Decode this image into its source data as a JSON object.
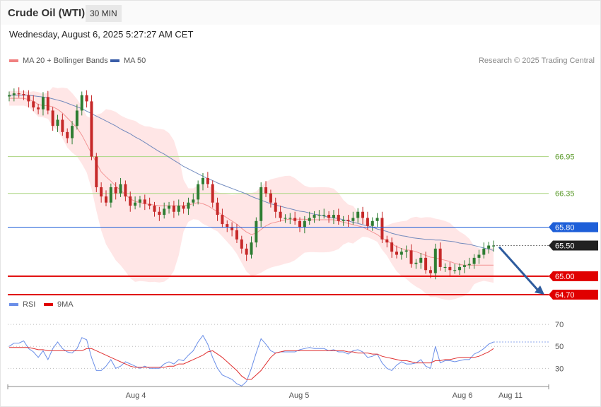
{
  "header": {
    "title": "Crude Oil (WTI)",
    "timeframe": "30 MIN",
    "datetime": "Wednesday, August 6, 2025 5:27:27 AM CET"
  },
  "legend": {
    "ma20": "MA 20 + Bollinger Bands",
    "ma50": "MA 50",
    "rsi": "RSI",
    "rsi_ma": "9MA"
  },
  "credit": "Research © 2025 Trading Central",
  "colors": {
    "bull": "#2e7d32",
    "bear": "#c62828",
    "band": "#ffdede",
    "ma20": "#f08080",
    "ma50": "#5a79b5",
    "blue_level": "#1e5fd8",
    "red_level": "#e00000",
    "green_level": "#b5d98f",
    "rsi": "#6a8ee8",
    "rsi_ma": "#e03030"
  },
  "chart_data": [
    {
      "type": "candlestick",
      "x_labels": [
        "Aug 4",
        "Aug 5",
        "Aug 6",
        "Aug 11"
      ],
      "ylim": [
        64.55,
        68.35
      ],
      "levels": [
        {
          "value": 66.95,
          "label": "66.95",
          "kind": "resistance"
        },
        {
          "value": 66.35,
          "label": "66.35",
          "kind": "resistance"
        },
        {
          "value": 65.8,
          "label": "65.80",
          "kind": "pivot"
        },
        {
          "value": 65.5,
          "label": "65.50",
          "kind": "last"
        },
        {
          "value": 65.0,
          "label": "65.00",
          "kind": "support"
        },
        {
          "value": 64.7,
          "label": "64.70",
          "kind": "support"
        }
      ],
      "closes": [
        67.95,
        67.98,
        67.97,
        67.95,
        67.85,
        67.75,
        67.72,
        67.92,
        67.7,
        67.45,
        67.55,
        67.35,
        67.25,
        67.45,
        67.7,
        67.95,
        67.85,
        66.95,
        66.45,
        66.3,
        66.2,
        66.45,
        66.35,
        66.5,
        66.3,
        66.15,
        66.2,
        66.25,
        66.18,
        66.15,
        66.05,
        66.0,
        66.1,
        66.15,
        66.05,
        66.15,
        66.1,
        66.2,
        66.25,
        66.5,
        66.6,
        66.5,
        66.2,
        66.0,
        65.85,
        65.8,
        65.75,
        65.6,
        65.45,
        65.35,
        65.55,
        65.9,
        66.45,
        66.35,
        66.2,
        66.05,
        65.95,
        65.95,
        65.95,
        65.9,
        65.8,
        65.9,
        65.95,
        66.0,
        66.0,
        66.0,
        65.95,
        66.0,
        65.9,
        65.92,
        65.9,
        65.95,
        66.05,
        65.95,
        65.82,
        65.9,
        65.95,
        65.6,
        65.55,
        65.4,
        65.35,
        65.4,
        65.42,
        65.2,
        65.22,
        65.3,
        65.1,
        65.05,
        65.45,
        65.15,
        65.15,
        65.1,
        65.1,
        65.15,
        65.18,
        65.2,
        65.3,
        65.35,
        65.45,
        65.5,
        65.5
      ],
      "sma20": [
        67.9,
        67.9,
        67.9,
        67.9,
        67.88,
        67.85,
        67.8,
        67.78,
        67.78,
        67.76,
        67.72,
        67.66,
        67.58,
        67.5,
        67.42,
        67.3,
        67.15,
        67.0,
        66.85,
        66.7,
        66.62,
        66.55,
        66.47,
        66.4,
        66.33,
        66.26,
        66.22,
        66.2,
        66.18,
        66.17,
        66.16,
        66.15,
        66.15,
        66.15,
        66.15,
        66.15,
        66.15,
        66.16,
        66.18,
        66.2,
        66.18,
        66.15,
        66.1,
        66.05,
        66.0,
        65.95,
        65.9,
        65.85,
        65.78,
        65.72,
        65.68,
        65.7,
        65.76,
        65.82,
        65.86,
        65.88,
        65.9,
        65.92,
        65.93,
        65.93,
        65.93,
        65.93,
        65.92,
        65.92,
        65.92,
        65.92,
        65.92,
        65.92,
        65.9,
        65.88,
        65.86,
        65.84,
        65.82,
        65.8,
        65.76,
        65.72,
        65.68,
        65.62,
        65.58,
        65.53,
        65.48,
        65.45,
        65.43,
        65.42,
        65.4,
        65.37,
        65.34,
        65.31,
        65.3,
        65.28,
        65.26,
        65.24,
        65.21,
        65.19,
        65.18,
        65.18,
        65.18,
        65.18,
        65.18,
        65.18,
        65.18
      ],
      "sma50": [
        67.95,
        67.95,
        67.95,
        67.95,
        67.95,
        67.94,
        67.93,
        67.92,
        67.91,
        67.89,
        67.87,
        67.85,
        67.82,
        67.79,
        67.76,
        67.73,
        67.69,
        67.65,
        67.61,
        67.57,
        67.53,
        67.49,
        67.45,
        67.4,
        67.36,
        67.32,
        67.27,
        67.23,
        67.18,
        67.13,
        67.08,
        67.03,
        66.99,
        66.94,
        66.89,
        66.84,
        66.79,
        66.75,
        66.71,
        66.67,
        66.63,
        66.59,
        66.56,
        66.52,
        66.49,
        66.46,
        66.43,
        66.4,
        66.37,
        66.34,
        66.3,
        66.27,
        66.24,
        66.21,
        66.18,
        66.16,
        66.14,
        66.12,
        66.1,
        66.08,
        66.06,
        66.05,
        66.03,
        66.01,
        66.0,
        65.98,
        65.96,
        65.95,
        65.94,
        65.92,
        65.9,
        65.88,
        65.86,
        65.84,
        65.82,
        65.8,
        65.77,
        65.75,
        65.73,
        65.7,
        65.68,
        65.66,
        65.65,
        65.63,
        65.62,
        65.61,
        65.6,
        65.6,
        65.59,
        65.59,
        65.58,
        65.57,
        65.56,
        65.54,
        65.53,
        65.52,
        65.5,
        65.48,
        65.46,
        65.44,
        65.42
      ]
    },
    {
      "type": "line",
      "name": "RSI",
      "yticks": [
        70,
        50,
        30
      ],
      "ylim": [
        18,
        72
      ],
      "series": [
        {
          "name": "RSI",
          "values": [
            50,
            53,
            53,
            55,
            48,
            45,
            40,
            46,
            38,
            48,
            54,
            48,
            45,
            44,
            48,
            58,
            56,
            40,
            28,
            28,
            32,
            38,
            30,
            32,
            36,
            34,
            32,
            30,
            32,
            30,
            30,
            30,
            34,
            36,
            34,
            38,
            37,
            42,
            46,
            54,
            60,
            52,
            40,
            30,
            24,
            22,
            20,
            16,
            14,
            18,
            30,
            44,
            57,
            52,
            46,
            44,
            45,
            45,
            45,
            45,
            47,
            48,
            49,
            48,
            48,
            48,
            46,
            47,
            45,
            45,
            43,
            46,
            47,
            45,
            40,
            41,
            43,
            35,
            30,
            28,
            33,
            36,
            34,
            34,
            35,
            38,
            32,
            30,
            50,
            35,
            37,
            37,
            36,
            37,
            38,
            38,
            43,
            45,
            48,
            52,
            54
          ]
        },
        {
          "name": "9MA",
          "values": [
            49,
            49,
            49,
            49,
            49,
            48,
            47,
            47,
            46,
            46,
            46,
            46,
            46,
            46,
            46,
            46,
            48,
            48,
            46,
            44,
            42,
            40,
            38,
            36,
            34,
            32,
            31,
            31,
            31,
            31,
            31,
            31,
            31,
            32,
            32,
            34,
            34,
            36,
            38,
            40,
            42,
            45,
            46,
            43,
            40,
            36,
            32,
            28,
            23,
            20,
            20,
            24,
            28,
            34,
            40,
            44,
            45,
            46,
            46,
            46,
            46,
            46,
            46,
            46,
            46,
            46,
            46,
            46,
            46,
            46,
            45,
            45,
            44,
            44,
            44,
            43,
            43,
            41,
            40,
            39,
            38,
            37,
            37,
            36,
            35,
            35,
            35,
            35,
            37,
            37,
            38,
            38,
            39,
            40,
            40,
            40,
            40,
            41,
            43,
            45,
            48
          ]
        }
      ]
    }
  ]
}
